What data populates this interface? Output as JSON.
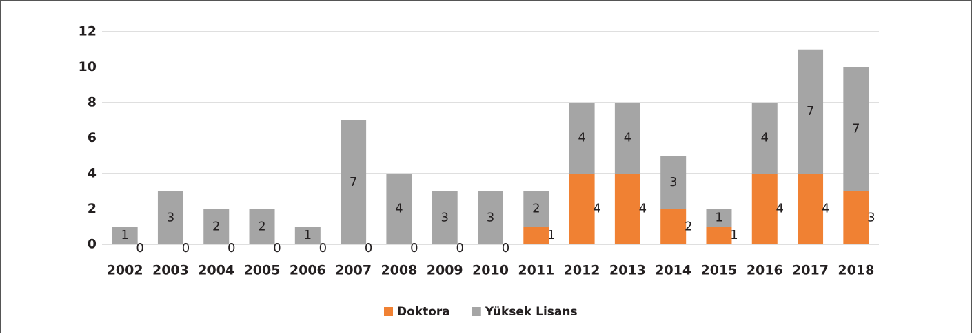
{
  "chart_data": {
    "type": "bar",
    "stacked": true,
    "categories": [
      "2002",
      "2003",
      "2004",
      "2005",
      "2006",
      "2007",
      "2008",
      "2009",
      "2010",
      "2011",
      "2012",
      "2013",
      "2014",
      "2015",
      "2016",
      "2017",
      "2018"
    ],
    "series": [
      {
        "name": "Doktora",
        "color": "#f08133",
        "values": [
          0,
          0,
          0,
          0,
          0,
          0,
          0,
          0,
          0,
          1,
          4,
          4,
          2,
          1,
          4,
          4,
          3
        ]
      },
      {
        "name": "Yüksek Lisans",
        "color": "#a5a5a5",
        "values": [
          1,
          3,
          2,
          2,
          1,
          7,
          4,
          3,
          3,
          2,
          4,
          4,
          3,
          1,
          4,
          7,
          7
        ]
      }
    ],
    "ylim": [
      0,
      12
    ],
    "yticks": [
      0,
      2,
      4,
      6,
      8,
      10,
      12
    ],
    "grid": true,
    "legend": "bottom"
  }
}
